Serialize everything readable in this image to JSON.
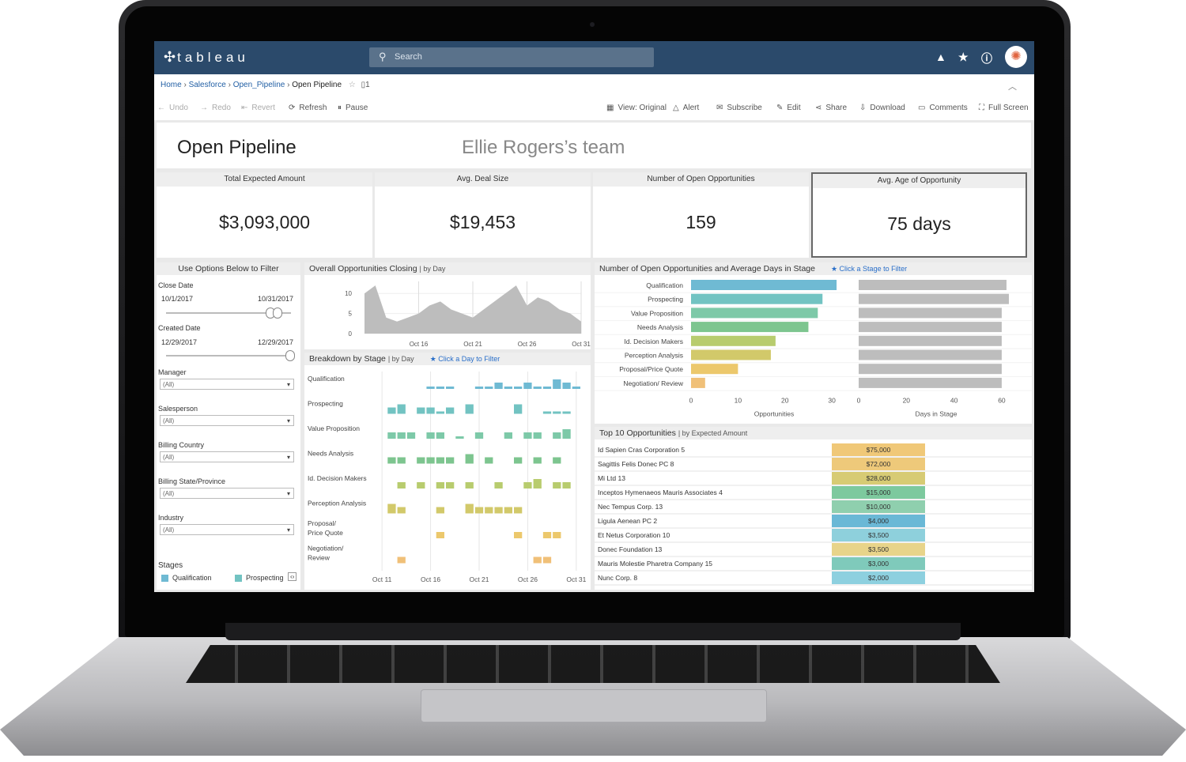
{
  "app": {
    "brand": "tableau",
    "search_placeholder": "Search"
  },
  "breadcrumb": {
    "home": "Home",
    "salesforce": "Salesforce",
    "open_pipeline_project": "Open_Pipeline",
    "current": "Open Pipeline",
    "views_count": "1"
  },
  "toolbar": {
    "undo": "Undo",
    "redo": "Redo",
    "revert": "Revert",
    "refresh": "Refresh",
    "pause": "Pause",
    "view_original": "View: Original",
    "alert": "Alert",
    "subscribe": "Subscribe",
    "edit": "Edit",
    "share": "Share",
    "download": "Download",
    "comments": "Comments",
    "full_screen": "Full Screen"
  },
  "dashboard": {
    "title": "Open Pipeline",
    "team": "Ellie Rogers’s team"
  },
  "kpis": [
    {
      "label": "Total Expected Amount",
      "value": "$3,093,000"
    },
    {
      "label": "Avg. Deal Size",
      "value": "$19,453"
    },
    {
      "label": "Number of Open Opportunities",
      "value": "159"
    },
    {
      "label": "Avg. Age of Opportunity",
      "value": "75 days"
    }
  ],
  "filters": {
    "header": "Use Options Below to Filter",
    "close_date": {
      "label": "Close Date",
      "start": "10/1/2017",
      "end": "10/31/2017"
    },
    "created_date": {
      "label": "Created Date",
      "start": "12/29/2017",
      "end": "12/29/2017"
    },
    "manager": {
      "label": "Manager",
      "value": "(All)"
    },
    "salesperson": {
      "label": "Salesperson",
      "value": "(All)"
    },
    "billing_country": {
      "label": "Billing Country",
      "value": "(All)"
    },
    "billing_state": {
      "label": "Billing State/Province",
      "value": "(All)"
    },
    "industry": {
      "label": "Industry",
      "value": "(All)"
    },
    "stages_label": "Stages",
    "legend": [
      {
        "name": "Qualification",
        "color": "#6fbad3"
      },
      {
        "name": "Prospecting",
        "color": "#72c3c2"
      }
    ]
  },
  "colors": {
    "topbar": "#2b4a6b",
    "Qualification": "#6fbad3",
    "Prospecting": "#72c3c2",
    "Value Proposition": "#7dc9a8",
    "Needs Analysis": "#7dc58f",
    "Id. Decision Makers": "#b8cc6e",
    "Perception Analysis": "#d2c96a",
    "Proposal/Price Quote": "#ecc86c",
    "Negotiation/ Review": "#f0c078",
    "gray_bar": "#bdbdbd"
  },
  "closing_chart": {
    "title": "Overall Opportunities Closing",
    "subtitle": "| by Day"
  },
  "stage_chart": {
    "title": "Number of Open Opportunities and Average Days in Stage",
    "hint": "★ Click a Stage to Filter",
    "opps_axis_label": "Opportunities",
    "days_axis_label": "Days in Stage"
  },
  "breakdown_chart": {
    "title": "Breakdown by Stage",
    "subtitle": "| by Day",
    "hint": "★ Click a Day to Filter",
    "stage_labels": [
      "Qualification",
      "Prospecting",
      "Value Proposition",
      "Needs Analysis",
      "Id. Decision Makers",
      "Perception Analysis",
      "Proposal/Price Quote",
      "Negotiation/ Review"
    ]
  },
  "top10": {
    "title": "Top 10 Opportunities",
    "subtitle": "| by Expected Amount",
    "rows": [
      {
        "name": "Id Sapien Cras Corporation 5",
        "amount": "$75,000",
        "color": "#f0c878"
      },
      {
        "name": "Sagittis Felis Donec PC 8",
        "amount": "$72,000",
        "color": "#eec97a"
      },
      {
        "name": "Mi Ltd 13",
        "amount": "$28,000",
        "color": "#d7cb74"
      },
      {
        "name": "Inceptos Hymenaeos Mauris Associates 4",
        "amount": "$15,000",
        "color": "#7dc99e"
      },
      {
        "name": "Nec Tempus Corp. 13",
        "amount": "$10,000",
        "color": "#8fcfae"
      },
      {
        "name": "Ligula Aenean PC 2",
        "amount": "$4,000",
        "color": "#6ab8d6"
      },
      {
        "name": "Et Netus Corporation 10",
        "amount": "$3,500",
        "color": "#8ed0dc"
      },
      {
        "name": "Donec Foundation 13",
        "amount": "$3,500",
        "color": "#e8d48a"
      },
      {
        "name": "Mauris Molestie Pharetra Company 15",
        "amount": "$3,000",
        "color": "#7fcabb"
      },
      {
        "name": "Nunc Corp. 8",
        "amount": "$2,000",
        "color": "#8dd0df"
      }
    ]
  },
  "chart_data": [
    {
      "type": "area",
      "title": "Overall Opportunities Closing",
      "x": [
        "Oct 11",
        "Oct 12",
        "Oct 13",
        "Oct 14",
        "Oct 15",
        "Oct 16",
        "Oct 17",
        "Oct 18",
        "Oct 19",
        "Oct 20",
        "Oct 21",
        "Oct 22",
        "Oct 23",
        "Oct 24",
        "Oct 25",
        "Oct 26",
        "Oct 27",
        "Oct 28",
        "Oct 29",
        "Oct 30",
        "Oct 31"
      ],
      "values": [
        10,
        12,
        4,
        3,
        4,
        5,
        7,
        8,
        6,
        5,
        4,
        6,
        8,
        10,
        12,
        7,
        9,
        8,
        6,
        5,
        3
      ],
      "x_ticks": [
        "Oct 16",
        "Oct 21",
        "Oct 26",
        "Oct 31"
      ],
      "y_ticks": [
        0,
        5,
        10
      ],
      "ylim": [
        0,
        13
      ]
    },
    {
      "type": "bar",
      "title": "Number of Open Opportunities and Average Days in Stage",
      "categories": [
        "Qualification",
        "Prospecting",
        "Value Proposition",
        "Needs Analysis",
        "Id. Decision Makers",
        "Perception Analysis",
        "Proposal/Price Quote",
        "Negotiation/ Review"
      ],
      "series": [
        {
          "name": "Opportunities",
          "values": [
            31,
            28,
            27,
            25,
            18,
            17,
            10,
            3
          ]
        },
        {
          "name": "Days in Stage",
          "values": [
            62,
            63,
            60,
            60,
            60,
            60,
            60,
            60
          ]
        }
      ],
      "opps_ticks": [
        0,
        10,
        20,
        30
      ],
      "opps_lim": [
        0,
        32
      ],
      "days_ticks": [
        0,
        20,
        40,
        60
      ],
      "days_lim": [
        0,
        65
      ]
    },
    {
      "type": "bar",
      "title": "Breakdown by Stage",
      "x_ticks": [
        "Oct 11",
        "Oct 16",
        "Oct 21",
        "Oct 26",
        "Oct 31"
      ],
      "days": 21,
      "rows": [
        [
          0,
          0,
          0,
          0,
          0,
          1,
          1,
          1,
          0,
          0,
          1,
          1,
          2,
          1,
          1,
          2,
          1,
          1,
          3,
          2,
          1
        ],
        [
          0,
          2,
          3,
          0,
          2,
          2,
          1,
          2,
          0,
          3,
          0,
          0,
          0,
          0,
          3,
          0,
          0,
          1,
          1,
          1,
          0
        ],
        [
          0,
          2,
          2,
          2,
          0,
          2,
          2,
          0,
          1,
          0,
          2,
          0,
          0,
          2,
          0,
          2,
          2,
          0,
          2,
          3,
          0
        ],
        [
          0,
          2,
          2,
          0,
          2,
          2,
          2,
          2,
          0,
          3,
          0,
          2,
          0,
          0,
          2,
          0,
          2,
          0,
          2,
          0,
          0
        ],
        [
          0,
          0,
          2,
          0,
          2,
          0,
          2,
          2,
          0,
          2,
          0,
          0,
          2,
          0,
          0,
          2,
          3,
          0,
          2,
          2,
          0
        ],
        [
          0,
          3,
          2,
          0,
          0,
          0,
          2,
          0,
          0,
          3,
          2,
          2,
          2,
          2,
          2,
          0,
          0,
          0,
          0,
          0,
          0
        ],
        [
          0,
          0,
          0,
          0,
          0,
          0,
          2,
          0,
          0,
          0,
          0,
          0,
          0,
          0,
          2,
          0,
          0,
          2,
          2,
          0,
          0
        ],
        [
          0,
          0,
          2,
          0,
          0,
          0,
          0,
          0,
          0,
          0,
          0,
          0,
          0,
          0,
          0,
          0,
          2,
          2,
          0,
          0,
          0
        ]
      ]
    }
  ]
}
